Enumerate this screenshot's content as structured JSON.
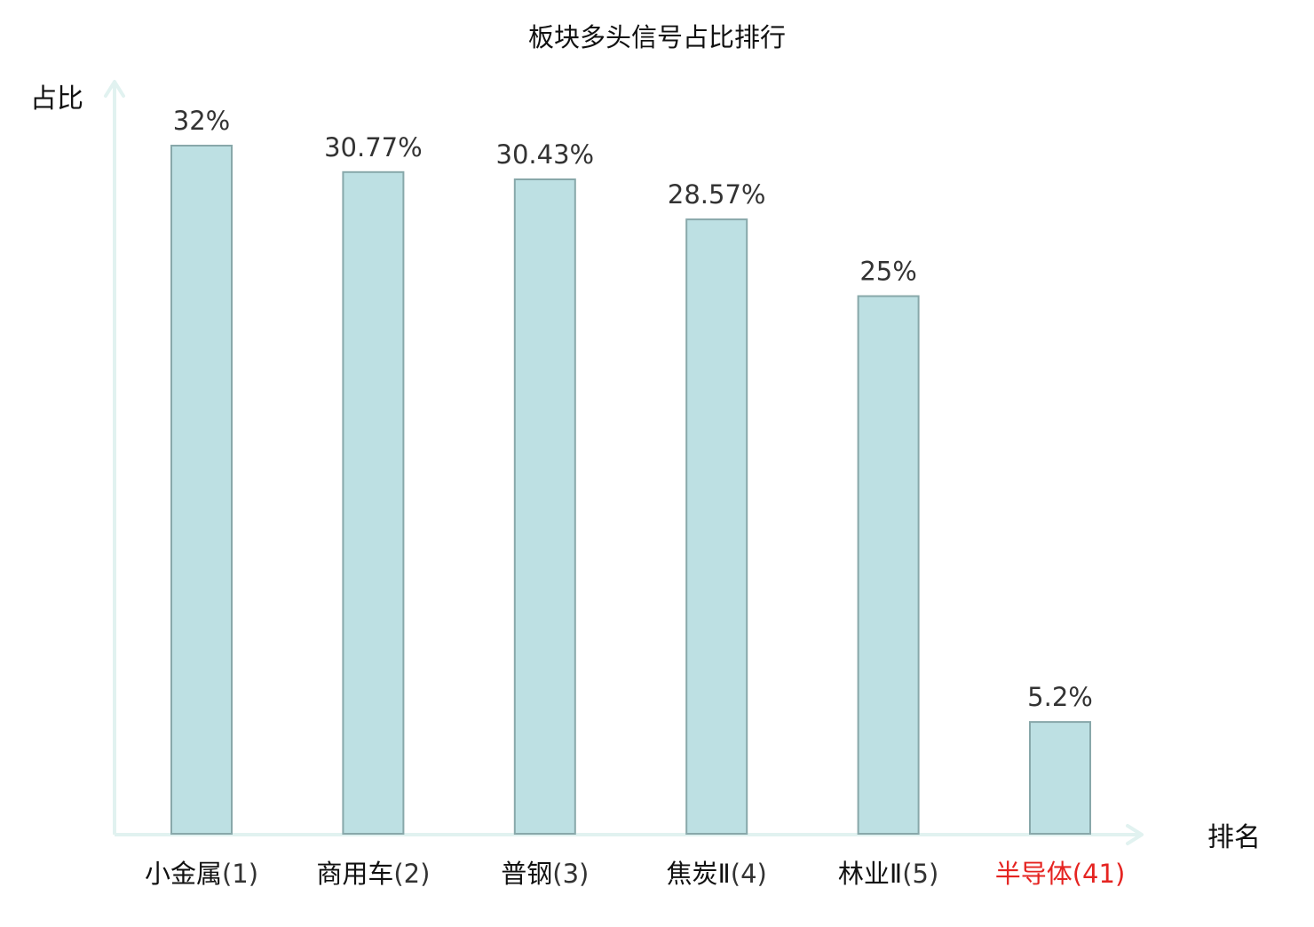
{
  "chart_data": {
    "type": "bar",
    "title": "板块多头信号占比排行",
    "ylabel": "占比",
    "xlabel": "排名",
    "ylim": [
      0,
      35
    ],
    "grid": false,
    "legend": "none",
    "categories": [
      {
        "name": "小金属",
        "rank": "(1)",
        "highlight": false
      },
      {
        "name": "商用车",
        "rank": "(2)",
        "highlight": false
      },
      {
        "name": "普钢",
        "rank": "(3)",
        "highlight": false
      },
      {
        "name": "焦炭Ⅱ",
        "rank": "(4)",
        "highlight": false
      },
      {
        "name": "林业Ⅱ",
        "rank": "(5)",
        "highlight": false
      },
      {
        "name": "半导体",
        "rank": "(41)",
        "highlight": true
      }
    ],
    "values": [
      32,
      30.77,
      30.43,
      28.57,
      25,
      5.2
    ],
    "value_labels": [
      "32%",
      "30.77%",
      "30.43%",
      "28.57%",
      "25%",
      "5.2%"
    ]
  },
  "colors": {
    "bar_fill": "#bde0e3",
    "bar_stroke": "#88a8aa",
    "axis": "#e1f2f0",
    "text": "#333333",
    "label": "#111111",
    "highlight": "#e52421"
  }
}
